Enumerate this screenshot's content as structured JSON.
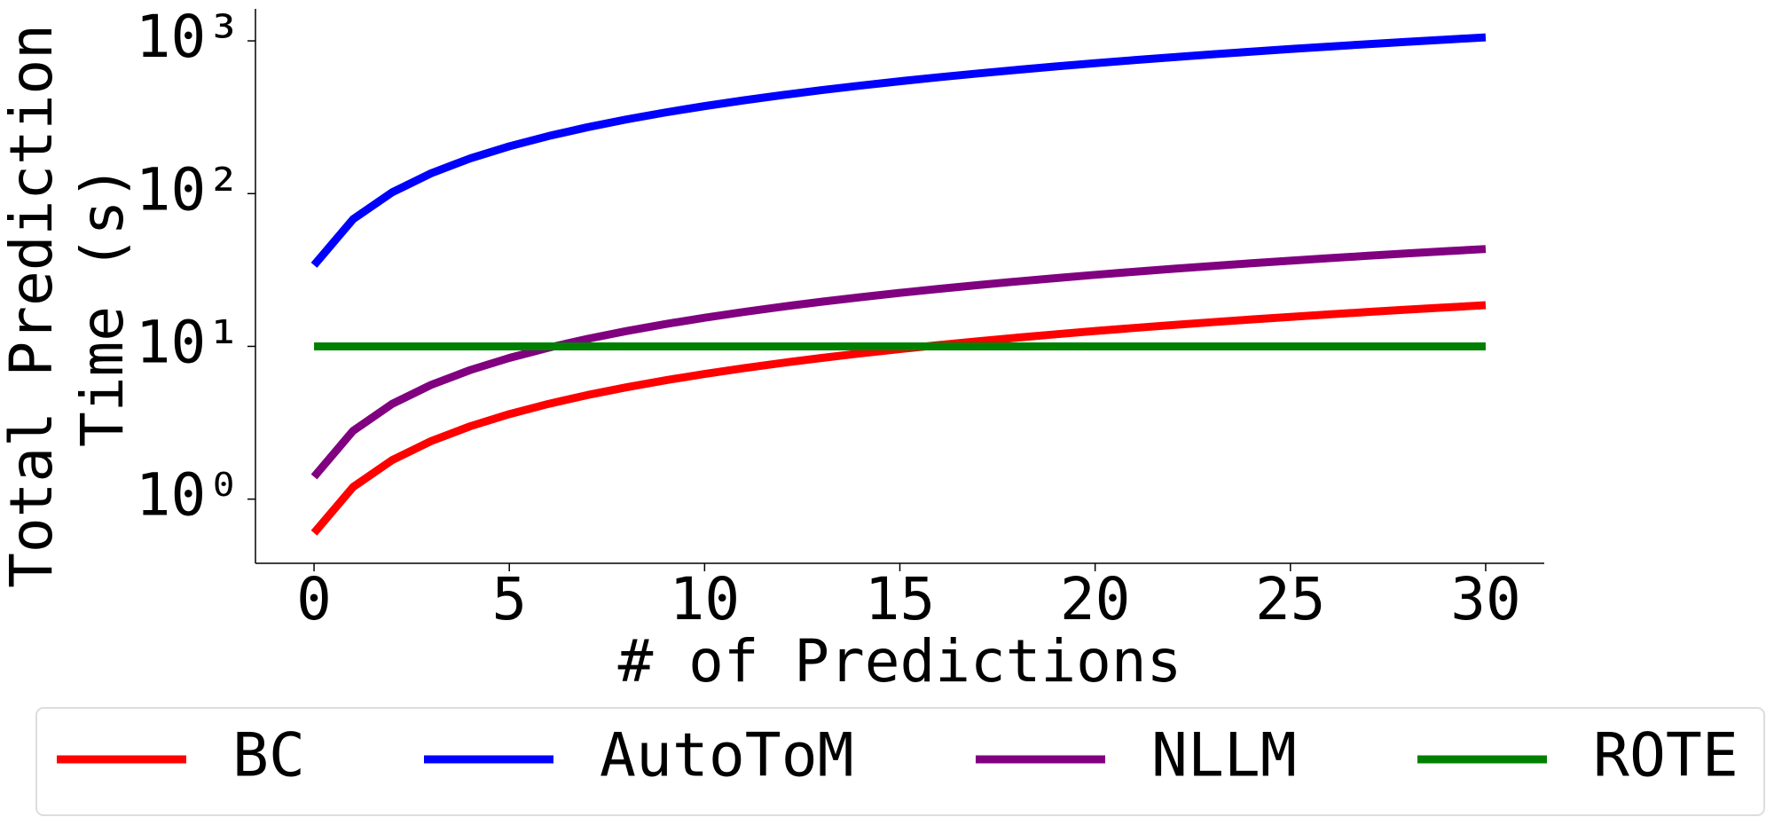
{
  "chart_data": {
    "type": "line",
    "xlabel": "# of Predictions",
    "ylabel": [
      "Total Prediction",
      "Time (s)"
    ],
    "x": [
      0,
      1,
      2,
      3,
      4,
      5,
      6,
      7,
      8,
      9,
      10,
      11,
      12,
      13,
      14,
      15,
      16,
      17,
      18,
      19,
      20,
      21,
      22,
      23,
      24,
      25,
      26,
      27,
      28,
      29,
      30
    ],
    "series": [
      {
        "name": "BC",
        "color": "#ff0000",
        "values": [
          0.6,
          1.2,
          1.8,
          2.4,
          3.0,
          3.6,
          4.2,
          4.8,
          5.4,
          6.0,
          6.6,
          7.2,
          7.8,
          8.4,
          9.0,
          9.6,
          10.2,
          10.8,
          11.4,
          12.0,
          12.6,
          13.2,
          13.8,
          14.4,
          15.0,
          15.6,
          16.2,
          16.8,
          17.4,
          18.0,
          18.6
        ]
      },
      {
        "name": "AutoToM",
        "color": "#0000ff",
        "values": [
          34,
          68,
          102,
          136,
          170,
          204,
          238,
          272,
          306,
          340,
          374,
          408,
          442,
          476,
          510,
          544,
          578,
          612,
          646,
          680,
          714,
          748,
          782,
          816,
          850,
          884,
          918,
          952,
          986,
          1020,
          1054
        ]
      },
      {
        "name": "NLLM",
        "color": "#800080",
        "values": [
          1.4,
          2.8,
          4.2,
          5.6,
          7.0,
          8.4,
          9.8,
          11.2,
          12.6,
          14.0,
          15.4,
          16.8,
          18.2,
          19.6,
          21.0,
          22.4,
          23.8,
          25.2,
          26.6,
          28.0,
          29.4,
          30.8,
          32.2,
          33.6,
          35.0,
          36.4,
          37.8,
          39.2,
          40.6,
          42.0,
          43.4
        ]
      },
      {
        "name": "ROTE",
        "color": "#008000",
        "values": [
          10,
          10,
          10,
          10,
          10,
          10,
          10,
          10,
          10,
          10,
          10,
          10,
          10,
          10,
          10,
          10,
          10,
          10,
          10,
          10,
          10,
          10,
          10,
          10,
          10,
          10,
          10,
          10,
          10,
          10,
          10
        ]
      }
    ],
    "xlim": [
      -1.5,
      31.5
    ],
    "xticks": [
      0,
      5,
      10,
      15,
      20,
      25,
      30
    ],
    "ylim": [
      0.38,
      1620
    ],
    "ylog": true,
    "yticks": [
      {
        "value": 1,
        "label": "10⁰"
      },
      {
        "value": 10,
        "label": "10¹"
      },
      {
        "value": 100,
        "label": "10²"
      },
      {
        "value": 1000,
        "label": "10³"
      }
    ],
    "legend_loc": "below"
  }
}
